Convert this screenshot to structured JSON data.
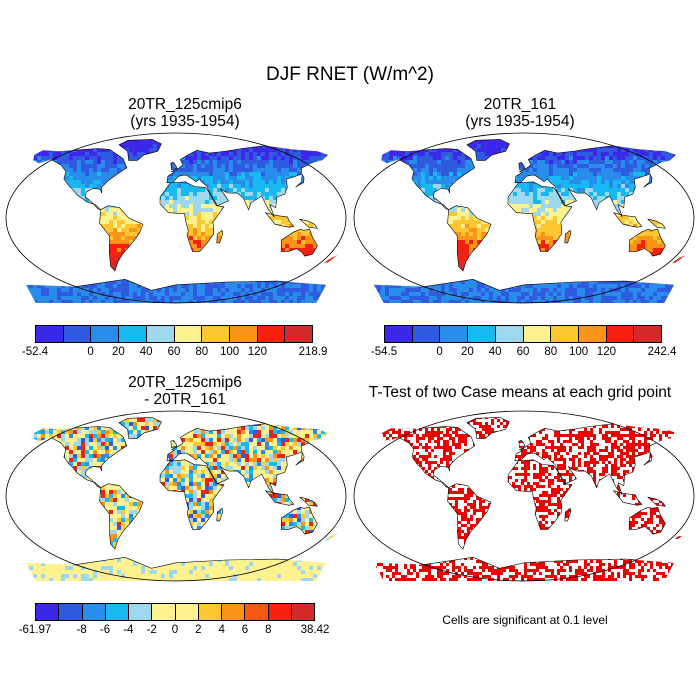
{
  "title": "DJF RNET (W/m^2)",
  "panels": [
    {
      "title_line1": "20TR_125cmip6",
      "title_line2": "(yrs 1935-1954)"
    },
    {
      "title_line1": "20TR_161",
      "title_line2": "(yrs 1935-1954)"
    },
    {
      "title_line1": "20TR_125cmip6",
      "title_line2": "- 20TR_161"
    },
    {
      "title_line1": "T-Test of two Case means at each grid point",
      "title_line2": ""
    }
  ],
  "colorbars": [
    {
      "labels": [
        "-52.4",
        "0",
        "20",
        "40",
        "60",
        "80",
        "100",
        "120",
        "218.9"
      ],
      "colors": [
        "#3c28e8",
        "#2e5be0",
        "#2a8cea",
        "#18b8f0",
        "#9dd8ef",
        "#fdf28f",
        "#fcc730",
        "#f99418",
        "#f5200e",
        "#d42a2a"
      ]
    },
    {
      "labels": [
        "-54.5",
        "0",
        "20",
        "40",
        "60",
        "80",
        "100",
        "120",
        "242.4"
      ],
      "colors": [
        "#3c28e8",
        "#2e5be0",
        "#2a8cea",
        "#18b8f0",
        "#9dd8ef",
        "#fdf28f",
        "#fcc730",
        "#f99418",
        "#f5200e",
        "#d42a2a"
      ]
    },
    {
      "labels": [
        "-61.97",
        "-8",
        "-6",
        "-4",
        "-2",
        "0",
        "2",
        "4",
        "6",
        "8",
        "38.42"
      ],
      "colors": [
        "#3c28e8",
        "#2e5be0",
        "#2a8cea",
        "#18b8f0",
        "#9dd8ef",
        "#fdf28f",
        "#fdf28f",
        "#fcc730",
        "#f99418",
        "#f55a10",
        "#f5200e",
        "#d42a2a"
      ]
    }
  ],
  "significance_note": "Cells are significant at 0.1 level",
  "significance_color": "#ee0000"
}
